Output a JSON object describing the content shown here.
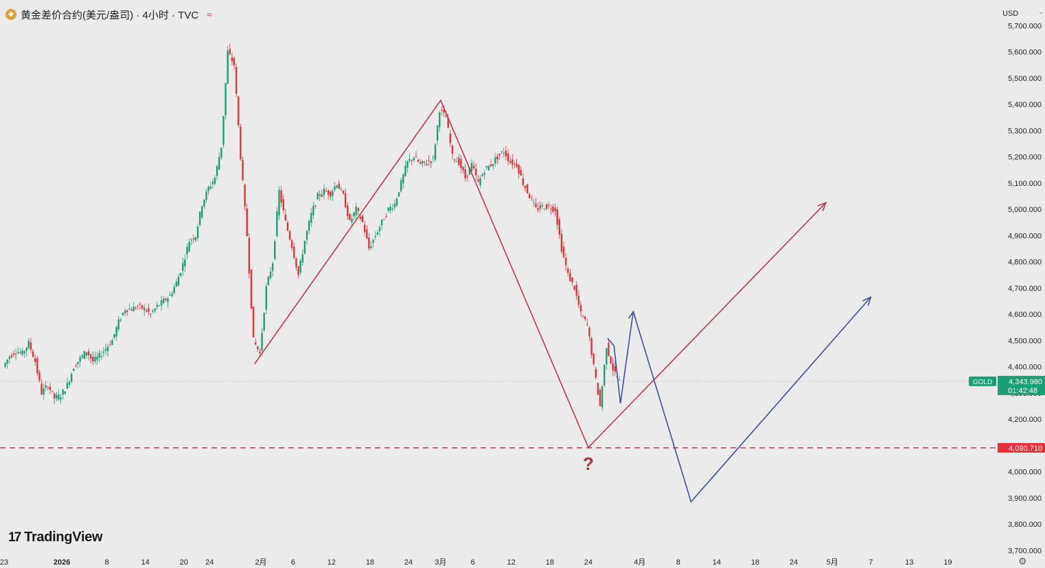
{
  "header": {
    "symbol_title": "黄金差价合约(美元/盎司) · 4小时 · TVC",
    "currency": "USD",
    "currency_caret": "⌄",
    "coin_icon": "gold-coin-icon",
    "wave_icon": "≈"
  },
  "price_tags": {
    "current_symbol": "GOLD",
    "current_price": "4,343.980",
    "countdown": "01:42:48",
    "support_level": "4,090.710",
    "colors": {
      "current": "#1a9e73",
      "support": "#e0323a"
    }
  },
  "annotation": {
    "question_mark": "?"
  },
  "branding": {
    "logo_mark": "17",
    "logo_text": "TradingView"
  },
  "chart_data": {
    "type": "candlestick",
    "symbol": "GOLD",
    "interval": "4小时",
    "ylim": [
      3700,
      5700
    ],
    "yticks": [
      3700,
      3800,
      3900,
      4000,
      4100,
      4200,
      4300,
      4400,
      4500,
      4600,
      4700,
      4800,
      4900,
      5000,
      5100,
      5200,
      5300,
      5400,
      5500,
      5600,
      5700
    ],
    "ytick_labels": {
      "3700": "3,700.000",
      "3800": "3,800.000",
      "3900": "3,900.000",
      "4000": "4,000.000",
      "4100": "4,100.000",
      "4200": "4,200.000",
      "4300": "4,300.000",
      "4400": "4,400.000",
      "4500": "4,500.000",
      "4600": "4,600.000",
      "4700": "4,700.000",
      "4800": "4,800.000",
      "4900": "4,900.000",
      "5000": "5,000.000",
      "5100": "5,100.000",
      "5200": "5,200.000",
      "5300": "5,300.000",
      "5400": "5,400.000",
      "5500": "5,500.000",
      "5600": "5,600.000",
      "5700": "5,700.000"
    },
    "x_unit": "day index from first visible date label",
    "xticks": [
      {
        "x": 0,
        "label": "23"
      },
      {
        "x": 9,
        "label": "2026",
        "bold": true
      },
      {
        "x": 16,
        "label": "8"
      },
      {
        "x": 22,
        "label": "14"
      },
      {
        "x": 28,
        "label": "20"
      },
      {
        "x": 32,
        "label": "24"
      },
      {
        "x": 40,
        "label": "2月"
      },
      {
        "x": 45,
        "label": "6"
      },
      {
        "x": 51,
        "label": "12"
      },
      {
        "x": 57,
        "label": "18"
      },
      {
        "x": 63,
        "label": "24"
      },
      {
        "x": 68,
        "label": "3月"
      },
      {
        "x": 73,
        "label": "6"
      },
      {
        "x": 79,
        "label": "12"
      },
      {
        "x": 85,
        "label": "18"
      },
      {
        "x": 91,
        "label": "24"
      },
      {
        "x": 99,
        "label": "4月"
      },
      {
        "x": 105,
        "label": "8"
      },
      {
        "x": 111,
        "label": "14"
      },
      {
        "x": 117,
        "label": "18"
      },
      {
        "x": 123,
        "label": "24"
      },
      {
        "x": 129,
        "label": "5月"
      },
      {
        "x": 135,
        "label": "7"
      },
      {
        "x": 141,
        "label": "13"
      },
      {
        "x": 147,
        "label": "19"
      }
    ],
    "price_path": [
      [
        0,
        4400
      ],
      [
        1,
        4440
      ],
      [
        2,
        4460
      ],
      [
        3,
        4450
      ],
      [
        4,
        4490
      ],
      [
        5,
        4420
      ],
      [
        6,
        4300
      ],
      [
        7,
        4330
      ],
      [
        8,
        4280
      ],
      [
        9,
        4290
      ],
      [
        10,
        4330
      ],
      [
        11,
        4400
      ],
      [
        12,
        4430
      ],
      [
        13,
        4460
      ],
      [
        14,
        4420
      ],
      [
        15,
        4440
      ],
      [
        16,
        4470
      ],
      [
        17,
        4500
      ],
      [
        18,
        4570
      ],
      [
        19,
        4620
      ],
      [
        20,
        4620
      ],
      [
        21,
        4630
      ],
      [
        22,
        4620
      ],
      [
        23,
        4600
      ],
      [
        24,
        4630
      ],
      [
        25,
        4650
      ],
      [
        26,
        4670
      ],
      [
        27,
        4720
      ],
      [
        28,
        4790
      ],
      [
        29,
        4880
      ],
      [
        30,
        4900
      ],
      [
        31,
        5020
      ],
      [
        32,
        5080
      ],
      [
        33,
        5120
      ],
      [
        34,
        5240
      ],
      [
        35,
        5600
      ],
      [
        36,
        5550
      ],
      [
        37,
        5200
      ],
      [
        38,
        4900
      ],
      [
        39,
        4500
      ],
      [
        40,
        4450
      ],
      [
        41,
        4700
      ],
      [
        42,
        4800
      ],
      [
        43,
        5070
      ],
      [
        44,
        4950
      ],
      [
        45,
        4860
      ],
      [
        46,
        4750
      ],
      [
        47,
        4880
      ],
      [
        48,
        4980
      ],
      [
        49,
        5050
      ],
      [
        50,
        5070
      ],
      [
        51,
        5060
      ],
      [
        52,
        5100
      ],
      [
        53,
        5050
      ],
      [
        54,
        4950
      ],
      [
        55,
        5000
      ],
      [
        56,
        4950
      ],
      [
        57,
        4850
      ],
      [
        58,
        4900
      ],
      [
        59,
        4950
      ],
      [
        60,
        5000
      ],
      [
        61,
        5020
      ],
      [
        62,
        5100
      ],
      [
        63,
        5180
      ],
      [
        64,
        5200
      ],
      [
        65,
        5170
      ],
      [
        66,
        5180
      ],
      [
        67,
        5190
      ],
      [
        68,
        5380
      ],
      [
        69,
        5350
      ],
      [
        70,
        5200
      ],
      [
        71,
        5180
      ],
      [
        72,
        5120
      ],
      [
        73,
        5170
      ],
      [
        74,
        5100
      ],
      [
        75,
        5150
      ],
      [
        76,
        5170
      ],
      [
        77,
        5200
      ],
      [
        78,
        5220
      ],
      [
        79,
        5180
      ],
      [
        80,
        5170
      ],
      [
        81,
        5100
      ],
      [
        82,
        5050
      ],
      [
        83,
        5000
      ],
      [
        84,
        5010
      ],
      [
        85,
        5010
      ],
      [
        86,
        5000
      ],
      [
        87,
        4850
      ],
      [
        88,
        4750
      ],
      [
        89,
        4700
      ],
      [
        90,
        4600
      ],
      [
        91,
        4560
      ],
      [
        92,
        4400
      ],
      [
        93,
        4250
      ],
      [
        94,
        4480
      ],
      [
        95,
        4390
      ],
      [
        96,
        4343.98
      ]
    ],
    "current_price": 4343.98,
    "support_level": 4090.71,
    "projections": [
      {
        "color": "#c2364a",
        "points": [
          [
            39,
            4410
          ],
          [
            68,
            5415
          ],
          [
            91,
            4092
          ],
          [
            128,
            5025
          ]
        ]
      },
      {
        "color": "#3e4e99",
        "points": [
          [
            94,
            4508
          ],
          [
            95,
            4480
          ],
          [
            96,
            4260
          ],
          [
            98,
            4610
          ],
          [
            107,
            3885
          ],
          [
            135,
            4665
          ]
        ]
      }
    ],
    "up_color": "#1a9e73",
    "down_color": "#e0323a",
    "grid": false
  }
}
